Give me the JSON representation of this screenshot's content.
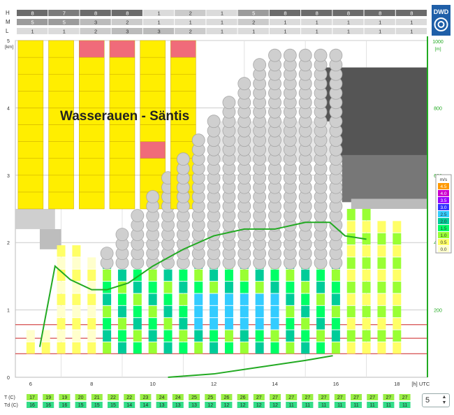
{
  "title": "Wasserauen - Säntis",
  "logo": {
    "text": "DWD",
    "color": "#1f5fa8"
  },
  "cloud_bars": {
    "labels": [
      "H",
      "M",
      "L"
    ],
    "H": [
      "8",
      "7",
      "8",
      "8",
      "1",
      "2",
      "1",
      "5",
      "8",
      "8",
      "8",
      "8",
      "8"
    ],
    "M": [
      "5",
      "5",
      "3",
      "2",
      "1",
      "1",
      "1",
      "2",
      "1",
      "1",
      "1",
      "1",
      "1"
    ],
    "L": [
      "1",
      "1",
      "2",
      "3",
      "3",
      "2",
      "1",
      "1",
      "1",
      "1",
      "1",
      "1",
      "1"
    ]
  },
  "left_axis": {
    "unit": "[km]",
    "ticks": [
      "0",
      "1",
      "2",
      "3",
      "4",
      "5"
    ]
  },
  "right_axis": {
    "unit": "[m]",
    "top": "1000",
    "ticks": [
      "200",
      "400",
      "600",
      "800"
    ]
  },
  "x_axis": {
    "ticks": [
      "6",
      "8",
      "10",
      "12",
      "14",
      "16",
      "18"
    ],
    "unit": "[h] UTC"
  },
  "wind_legend": {
    "title": "m/s",
    "entries": [
      {
        "label": "4.5",
        "color": "#ff9900"
      },
      {
        "label": "4.0",
        "color": "#cc00cc"
      },
      {
        "label": "3.5",
        "color": "#9900ff"
      },
      {
        "label": "3.0",
        "color": "#3333ff"
      },
      {
        "label": "2.5",
        "color": "#33ccff"
      },
      {
        "label": "2.0",
        "color": "#00cc99"
      },
      {
        "label": "1.5",
        "color": "#00ff66"
      },
      {
        "label": "1.0",
        "color": "#99ff33"
      },
      {
        "label": "0.5",
        "color": "#ffff66"
      },
      {
        "label": "0.0",
        "color": "#ffffcc"
      }
    ]
  },
  "temps": {
    "T_label": "T (C)",
    "Td_label": "Td (C)",
    "T": [
      "17",
      "19",
      "19",
      "20",
      "21",
      "22",
      "22",
      "23",
      "24",
      "24",
      "25",
      "25",
      "26",
      "26",
      "27",
      "27",
      "27",
      "27",
      "27",
      "27",
      "27",
      "27",
      "27",
      "27"
    ],
    "Td": [
      "16",
      "16",
      "16",
      "15",
      "15",
      "15",
      "14",
      "14",
      "13",
      "13",
      "13",
      "12",
      "12",
      "12",
      "12",
      "12",
      "11",
      "11",
      "11",
      "11",
      "11",
      "11",
      "11",
      "11"
    ]
  },
  "stepper": {
    "value": "5"
  },
  "chart_data": {
    "type": "area",
    "title": "Wasserauen - Säntis",
    "xlabel": "[h] UTC",
    "ylabel": "[km]",
    "xlim": [
      5.5,
      19
    ],
    "ylim": [
      0,
      5
    ],
    "boundary_layer_line": {
      "x": [
        6.3,
        6.8,
        7.3,
        8.0,
        8.5,
        9.2,
        10.0,
        11.0,
        12.0,
        13.0,
        14.0,
        15.0,
        15.8,
        16.3,
        17.0
      ],
      "y": [
        0.45,
        1.65,
        1.45,
        1.3,
        1.3,
        1.4,
        1.65,
        1.9,
        2.1,
        2.2,
        2.2,
        2.3,
        2.3,
        2.1,
        2.05
      ]
    },
    "lower_line": {
      "x": [
        10.5,
        12.0,
        13.5,
        15.0,
        15.9
      ],
      "y": [
        0.0,
        0.05,
        0.15,
        0.25,
        0.32
      ]
    },
    "wind_speed_legend_ms": [
      0.0,
      0.5,
      1.0,
      1.5,
      2.0,
      2.5,
      3.0,
      3.5,
      4.0,
      4.5
    ]
  }
}
